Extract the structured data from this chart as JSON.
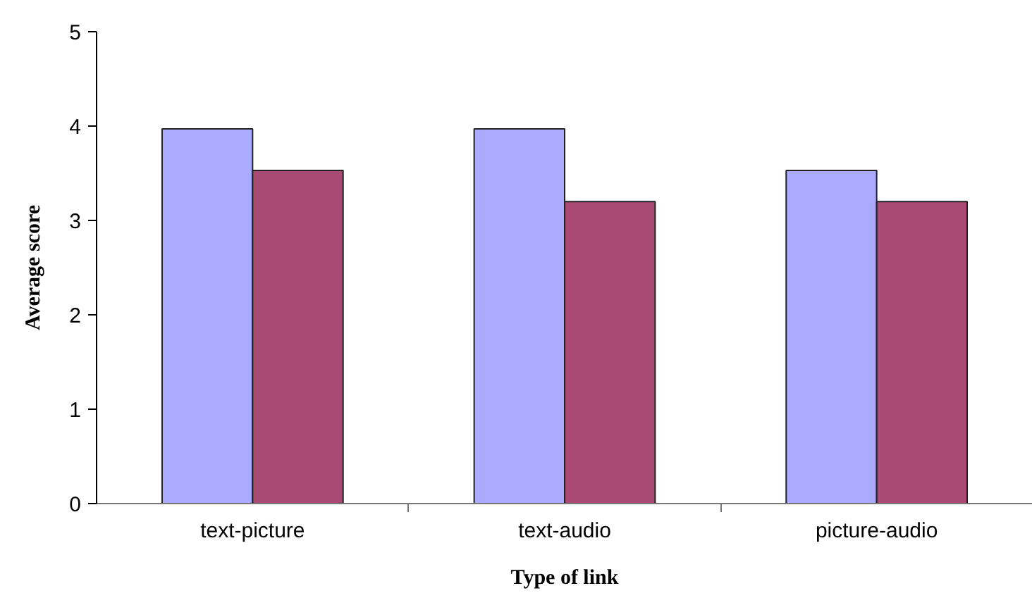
{
  "chart_data": {
    "type": "bar",
    "xlabel": "Type of link",
    "ylabel": "Average score",
    "categories": [
      "text-picture",
      "text-audio",
      "picture-audio"
    ],
    "series": [
      {
        "color": "#aaaaff",
        "values": [
          3.97,
          3.97,
          3.53
        ]
      },
      {
        "color": "#a94a74",
        "values": [
          3.53,
          3.2,
          3.2
        ]
      }
    ],
    "ylim": [
      0,
      5
    ],
    "yticks": [
      0,
      1,
      2,
      3,
      4,
      5
    ],
    "grid": false
  }
}
